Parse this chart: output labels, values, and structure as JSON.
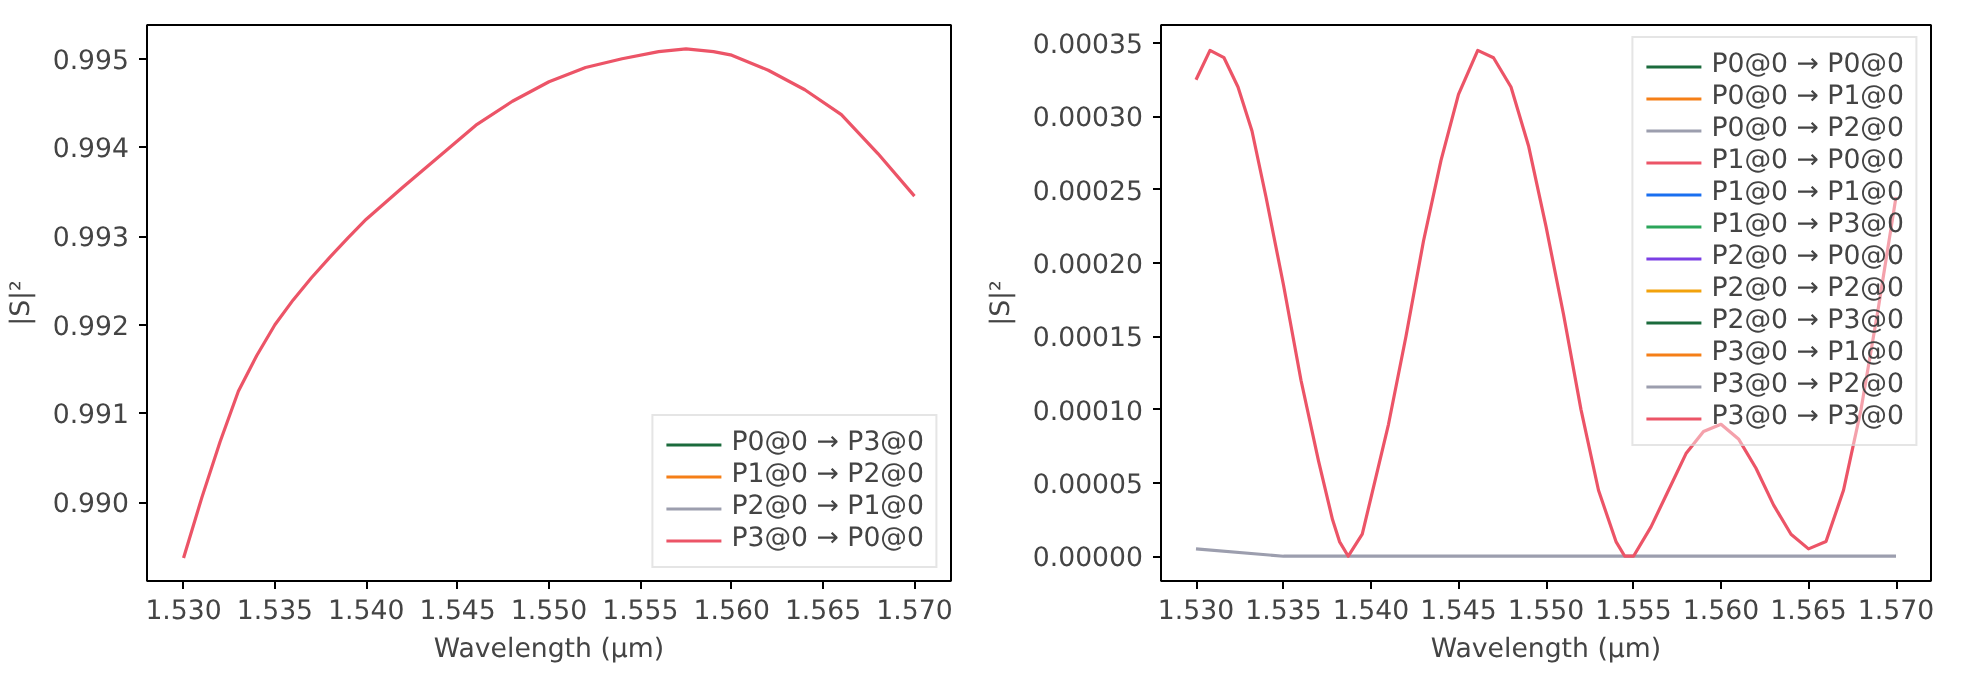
{
  "chart_data": [
    {
      "type": "line",
      "xlabel": "Wavelength (µm)",
      "ylabel": "|S|²",
      "legend": "bottom right",
      "grid": false,
      "x": [
        1.53,
        1.531,
        1.532,
        1.533,
        1.534,
        1.535,
        1.536,
        1.537,
        1.538,
        1.539,
        1.54,
        1.542,
        1.544,
        1.546,
        1.548,
        1.55,
        1.552,
        1.554,
        1.556,
        1.5575,
        1.559,
        1.56,
        1.562,
        1.564,
        1.566,
        1.568,
        1.57
      ],
      "xlim": [
        1.528,
        1.572
      ],
      "ylim": [
        0.98911,
        0.99538
      ],
      "xticks": [
        {
          "value": 1.53,
          "label": "1.530"
        },
        {
          "value": 1.535,
          "label": "1.535"
        },
        {
          "value": 1.54,
          "label": "1.540"
        },
        {
          "value": 1.545,
          "label": "1.545"
        },
        {
          "value": 1.55,
          "label": "1.550"
        },
        {
          "value": 1.555,
          "label": "1.555"
        },
        {
          "value": 1.56,
          "label": "1.560"
        },
        {
          "value": 1.565,
          "label": "1.565"
        },
        {
          "value": 1.57,
          "label": "1.570"
        }
      ],
      "yticks": [
        {
          "value": 0.99,
          "label": "0.990"
        },
        {
          "value": 0.991,
          "label": "0.991"
        },
        {
          "value": 0.992,
          "label": "0.992"
        },
        {
          "value": 0.993,
          "label": "0.993"
        },
        {
          "value": 0.994,
          "label": "0.994"
        },
        {
          "value": 0.995,
          "label": "0.995"
        }
      ],
      "series": [
        {
          "name": "P0@0 → P3@0",
          "color": "#1b6b3c",
          "values": [
            null,
            null,
            null,
            null,
            null,
            null,
            null,
            null,
            null,
            null,
            null,
            null,
            null,
            null,
            null,
            null,
            null,
            null,
            null,
            null,
            null,
            null,
            null,
            null,
            null,
            null,
            null
          ]
        },
        {
          "name": "P1@0 → P2@0",
          "color": "#f57f17",
          "values": [
            null,
            null,
            null,
            null,
            null,
            null,
            null,
            null,
            null,
            null,
            null,
            null,
            null,
            null,
            null,
            null,
            null,
            null,
            null,
            null,
            null,
            null,
            null,
            null,
            null,
            null,
            null
          ]
        },
        {
          "name": "P2@0 → P1@0",
          "color": "#9c9eae",
          "values": [
            null,
            null,
            null,
            null,
            null,
            null,
            null,
            null,
            null,
            null,
            null,
            null,
            null,
            null,
            null,
            null,
            null,
            null,
            null,
            null,
            null,
            null,
            null,
            null,
            null,
            null,
            null
          ]
        },
        {
          "name": "P3@0 → P0@0",
          "color": "#ec5467",
          "values": [
            0.98937,
            0.99005,
            0.99068,
            0.99125,
            0.99165,
            0.992,
            0.99228,
            0.99253,
            0.99276,
            0.99298,
            0.99319,
            0.99355,
            0.9939,
            0.99425,
            0.99452,
            0.99474,
            0.9949,
            0.995,
            0.99508,
            0.99511,
            0.99508,
            0.99504,
            0.99487,
            0.99465,
            0.99437,
            0.99393,
            0.99345
          ]
        }
      ]
    },
    {
      "type": "line",
      "xlabel": "Wavelength (µm)",
      "ylabel": "|S|²",
      "legend": "top right",
      "grid": false,
      "x": [
        1.53,
        1.535,
        1.54,
        1.545,
        1.55,
        1.555,
        1.56,
        1.565,
        1.57
      ],
      "xlim": [
        1.528,
        1.572
      ],
      "ylim": [
        -1.69e-05,
        0.0003623
      ],
      "xticks": [
        {
          "value": 1.53,
          "label": "1.530"
        },
        {
          "value": 1.535,
          "label": "1.535"
        },
        {
          "value": 1.54,
          "label": "1.540"
        },
        {
          "value": 1.545,
          "label": "1.545"
        },
        {
          "value": 1.55,
          "label": "1.550"
        },
        {
          "value": 1.555,
          "label": "1.555"
        },
        {
          "value": 1.56,
          "label": "1.560"
        },
        {
          "value": 1.565,
          "label": "1.565"
        },
        {
          "value": 1.57,
          "label": "1.570"
        }
      ],
      "yticks": [
        {
          "value": 0,
          "label": "0.00000"
        },
        {
          "value": 5e-05,
          "label": "0.00005"
        },
        {
          "value": 0.0001,
          "label": "0.00010"
        },
        {
          "value": 0.00015,
          "label": "0.00015"
        },
        {
          "value": 0.0002,
          "label": "0.00020"
        },
        {
          "value": 0.00025,
          "label": "0.00025"
        },
        {
          "value": 0.0003,
          "label": "0.00030"
        },
        {
          "value": 0.00035,
          "label": "0.00035"
        }
      ],
      "series": [
        {
          "name": "P0@0 → P0@0",
          "color": "#1b6b3c",
          "values": [
            null,
            null,
            null,
            null,
            null,
            null,
            null,
            null,
            null
          ]
        },
        {
          "name": "P0@0 → P1@0",
          "color": "#f57f17",
          "values": [
            null,
            null,
            null,
            null,
            null,
            null,
            null,
            null,
            null
          ]
        },
        {
          "name": "P0@0 → P2@0",
          "color": "#9c9eae",
          "values": [
            null,
            null,
            null,
            null,
            null,
            null,
            null,
            null,
            null
          ]
        },
        {
          "name": "P1@0 → P0@0",
          "color": "#ec5467",
          "values": [
            null,
            null,
            null,
            null,
            null,
            null,
            null,
            null,
            null
          ]
        },
        {
          "name": "P1@0 → P1@0",
          "color": "#1a6ff0",
          "values": [
            null,
            null,
            null,
            null,
            null,
            null,
            null,
            null,
            null
          ]
        },
        {
          "name": "P1@0 → P3@0",
          "color": "#2ba55a",
          "values": [
            null,
            null,
            null,
            null,
            null,
            null,
            null,
            null,
            null
          ]
        },
        {
          "name": "P2@0 → P0@0",
          "color": "#7b3fe4",
          "values": [
            null,
            null,
            null,
            null,
            null,
            null,
            null,
            null,
            null
          ]
        },
        {
          "name": "P2@0 → P2@0",
          "color": "#f2a20c",
          "values": [
            null,
            null,
            null,
            null,
            null,
            null,
            null,
            null,
            null
          ]
        },
        {
          "name": "P2@0 → P3@0",
          "color": "#1b6b3c",
          "values": [
            null,
            null,
            null,
            null,
            null,
            null,
            null,
            null,
            null
          ]
        },
        {
          "name": "P3@0 → P1@0",
          "color": "#f57f17",
          "values": [
            null,
            null,
            null,
            null,
            null,
            null,
            null,
            null,
            null
          ]
        },
        {
          "name": "P3@0 → P2@0",
          "color": "#9c9eae",
          "values": [
            5e-06,
            0,
            0,
            0,
            0,
            0,
            0,
            0,
            0
          ]
        },
        {
          "name": "P3@0 → P3@0",
          "color": "#ec5467",
          "x": [
            1.53,
            1.5308,
            1.5316,
            1.5324,
            1.5332,
            1.534,
            1.535,
            1.536,
            1.537,
            1.5378,
            1.5382,
            1.5387,
            1.5395,
            1.54,
            1.541,
            1.542,
            1.543,
            1.544,
            1.545,
            1.5461,
            1.547,
            1.548,
            1.549,
            1.55,
            1.551,
            1.552,
            1.553,
            1.554,
            1.5545,
            1.555,
            1.556,
            1.557,
            1.558,
            1.559,
            1.56,
            1.561,
            1.562,
            1.563,
            1.564,
            1.565,
            1.566,
            1.567,
            1.568,
            1.569,
            1.57
          ],
          "values": [
            0.000325,
            0.000345,
            0.00034,
            0.00032,
            0.00029,
            0.000245,
            0.000185,
            0.00012,
            6.5e-05,
            2.5e-05,
            1e-05,
            0,
            1.5e-05,
            4e-05,
            9e-05,
            0.00015,
            0.000215,
            0.00027,
            0.000315,
            0.000345,
            0.00034,
            0.00032,
            0.00028,
            0.000225,
            0.000165,
            0.0001,
            4.5e-05,
            1e-05,
            0,
            0,
            2e-05,
            4.5e-05,
            7e-05,
            8.5e-05,
            9e-05,
            8e-05,
            6e-05,
            3.5e-05,
            1.5e-05,
            5e-06,
            1e-05,
            4.5e-05,
            0.0001,
            0.00017,
            0.000245
          ]
        }
      ]
    }
  ]
}
